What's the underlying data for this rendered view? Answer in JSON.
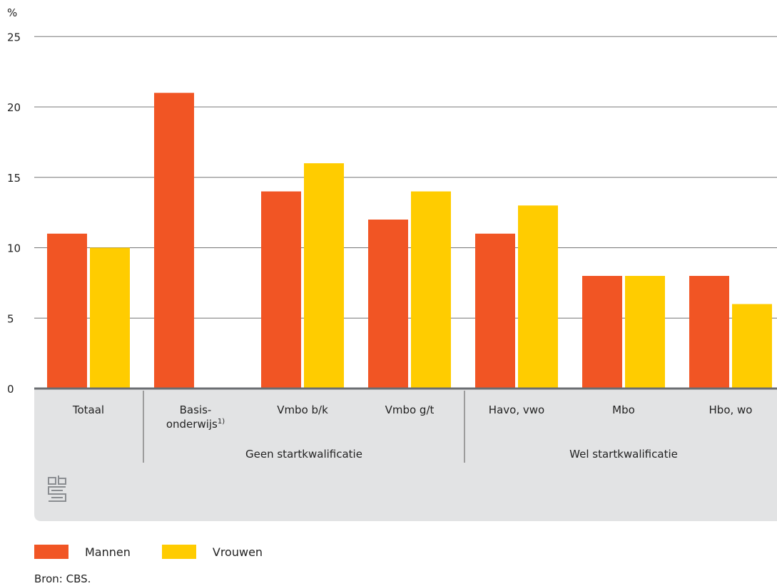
{
  "chart_data": {
    "type": "bar",
    "ylabel": "%",
    "ylim": [
      0,
      25
    ],
    "yticks": [
      0,
      5,
      10,
      15,
      20,
      25
    ],
    "grid": true,
    "categories": [
      "Totaal",
      "Basis-onderwijs1)",
      "Vmbo b/k",
      "Vmbo g/t",
      "Havo, vwo",
      "Mbo",
      "Hbo, wo"
    ],
    "category_lines": [
      [
        "Totaal"
      ],
      [
        "Basis-",
        "onderwijs"
      ],
      [
        "Vmbo b/k"
      ],
      [
        "Vmbo g/t"
      ],
      [
        "Havo, vwo"
      ],
      [
        "Mbo"
      ],
      [
        "Hbo, wo"
      ]
    ],
    "footnote_marker": "1)",
    "groups": [
      {
        "label": "Geen startkwalificatie",
        "categories": [
          "Basis-onderwijs1)",
          "Vmbo b/k",
          "Vmbo g/t"
        ]
      },
      {
        "label": "Wel startkwalificatie",
        "categories": [
          "Havo, vwo",
          "Mbo",
          "Hbo, wo"
        ]
      }
    ],
    "series": [
      {
        "name": "Mannen",
        "color": "#f15524",
        "values": [
          11,
          21,
          14,
          12,
          11,
          8,
          8
        ]
      },
      {
        "name": "Vrouwen",
        "color": "#ffcc00",
        "values": [
          10,
          null,
          16,
          14,
          13,
          8,
          6
        ]
      }
    ],
    "legend_position": "bottom-left"
  },
  "logo": {
    "text": "cbs",
    "icon": "cbs-logo-icon"
  },
  "source": "Bron: CBS.",
  "colors": {
    "mannen": "#f15524",
    "vrouwen": "#ffcc00",
    "panel": "#e2e3e4",
    "axis": "#6b6e72"
  }
}
